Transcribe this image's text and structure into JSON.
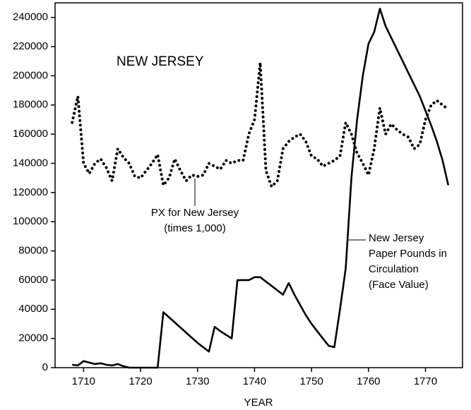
{
  "chart_data": {
    "type": "line",
    "title": "NEW JERSEY",
    "xlabel": "YEAR",
    "x": [
      1708,
      1709,
      1710,
      1711,
      1712,
      1713,
      1714,
      1715,
      1716,
      1717,
      1718,
      1719,
      1720,
      1721,
      1722,
      1723,
      1724,
      1725,
      1726,
      1727,
      1728,
      1729,
      1730,
      1731,
      1732,
      1733,
      1734,
      1735,
      1736,
      1737,
      1738,
      1739,
      1740,
      1741,
      1742,
      1743,
      1744,
      1745,
      1746,
      1747,
      1748,
      1749,
      1750,
      1751,
      1752,
      1753,
      1754,
      1755,
      1756,
      1757,
      1758,
      1759,
      1760,
      1761,
      1762,
      1763,
      1764,
      1765,
      1766,
      1767,
      1768,
      1769,
      1770,
      1771,
      1772,
      1773,
      1774
    ],
    "series": [
      {
        "name": [
          "PX for New Jersey",
          "(times 1,000)"
        ],
        "color": "#000000",
        "style": "dotted",
        "values": [
          168000,
          186000,
          140000,
          133000,
          140000,
          143000,
          137000,
          128000,
          150000,
          144000,
          140000,
          131000,
          130000,
          135000,
          140000,
          146000,
          125000,
          130000,
          143000,
          135000,
          128000,
          132000,
          131000,
          132000,
          140000,
          138000,
          136000,
          142000,
          140000,
          142000,
          142000,
          160000,
          170000,
          209000,
          135000,
          124000,
          128000,
          150000,
          155000,
          158000,
          160000,
          155000,
          145000,
          143000,
          138000,
          140000,
          142000,
          145000,
          168000,
          160000,
          147000,
          140000,
          132000,
          150000,
          178000,
          160000,
          167000,
          163000,
          160000,
          158000,
          150000,
          153000,
          170000,
          180000,
          183000,
          180000,
          177000
        ]
      },
      {
        "name": [
          "New Jersey",
          "Paper Pounds in",
          "Circulation",
          "(Face Value)"
        ],
        "color": "#000000",
        "style": "solid",
        "values": [
          2000,
          1500,
          4500,
          3500,
          2500,
          3000,
          2000,
          1500,
          2500,
          1000,
          0,
          0,
          0,
          0,
          0,
          0,
          38000,
          34500,
          31000,
          27500,
          24000,
          20500,
          17000,
          14000,
          11000,
          28000,
          25000,
          22500,
          20000,
          60000,
          60000,
          60000,
          62000,
          62000,
          59000,
          56000,
          53000,
          50000,
          58000,
          50000,
          43000,
          36000,
          30000,
          25000,
          20000,
          15000,
          14000,
          40000,
          68000,
          130000,
          170000,
          200000,
          222000,
          230000,
          246000,
          234000,
          226000,
          218000,
          210000,
          202000,
          194000,
          186000,
          176000,
          166000,
          155000,
          142000,
          125000
        ]
      }
    ],
    "xlim": [
      1705,
      1776.5
    ],
    "ylim": [
      0,
      250000
    ],
    "xticks": [
      1710,
      1720,
      1730,
      1740,
      1750,
      1760,
      1770
    ],
    "yticks": [
      0,
      20000,
      40000,
      60000,
      80000,
      100000,
      120000,
      140000,
      160000,
      180000,
      200000,
      220000,
      240000
    ],
    "grid": false
  }
}
